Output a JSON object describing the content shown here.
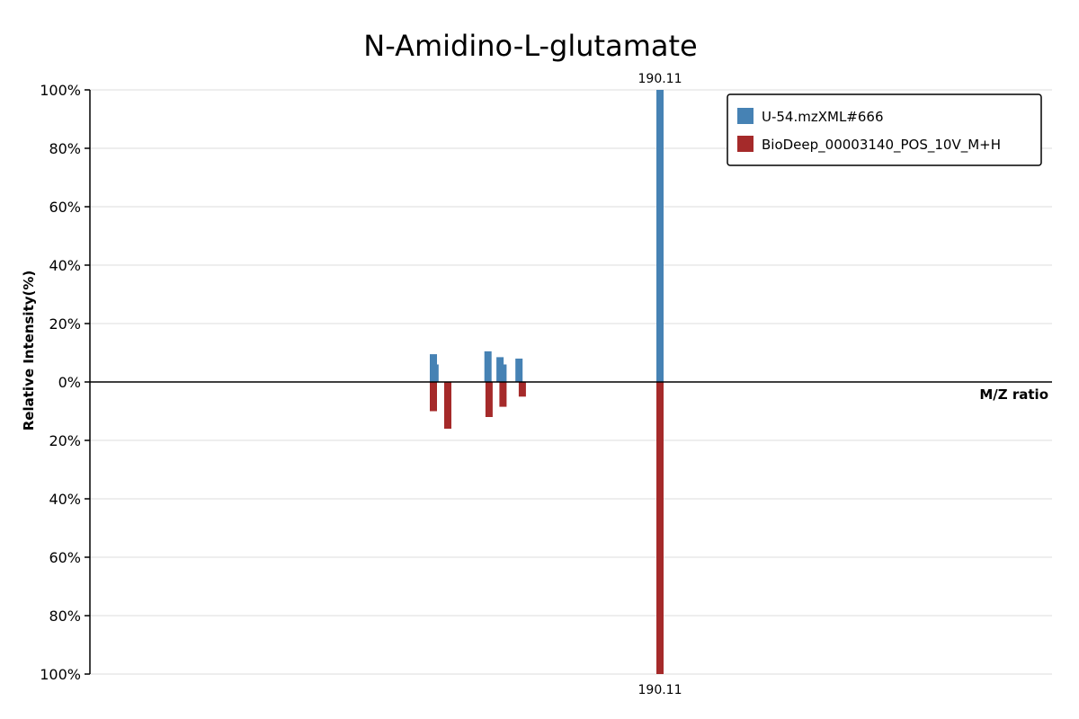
{
  "chart_data": {
    "type": "bar",
    "title": "N-Amidino-L-glutamate",
    "xlabel": "M/Z ratio",
    "ylabel": "Relative Intensity(%)",
    "ylim": [
      -100,
      100
    ],
    "y_ticks": [
      "100%",
      "80%",
      "60%",
      "40%",
      "20%",
      "0%",
      "20%",
      "40%",
      "60%",
      "80%",
      "100%"
    ],
    "grid": true,
    "legend_position": "top-right",
    "series": [
      {
        "name": "U-54.mzXML#666",
        "color": "#4682b4",
        "direction": "up",
        "peaks": [
          {
            "mz": 128.05,
            "intensity": 9.5
          },
          {
            "mz": 128.5,
            "intensity": 6
          },
          {
            "mz": 143.0,
            "intensity": 10.5
          },
          {
            "mz": 146.3,
            "intensity": 8.5
          },
          {
            "mz": 147.1,
            "intensity": 6
          },
          {
            "mz": 151.5,
            "intensity": 8
          },
          {
            "mz": 190.11,
            "intensity": 100
          }
        ]
      },
      {
        "name": "BioDeep_00003140_POS_10V_M+H",
        "color": "#a52a2a",
        "direction": "down",
        "peaks": [
          {
            "mz": 128.05,
            "intensity": 10
          },
          {
            "mz": 132.0,
            "intensity": 16
          },
          {
            "mz": 143.3,
            "intensity": 12
          },
          {
            "mz": 147.1,
            "intensity": 8.5
          },
          {
            "mz": 152.4,
            "intensity": 5
          },
          {
            "mz": 190.11,
            "intensity": 100
          }
        ]
      }
    ],
    "peak_labels": {
      "top": "190.11",
      "bottom": "190.11"
    }
  }
}
